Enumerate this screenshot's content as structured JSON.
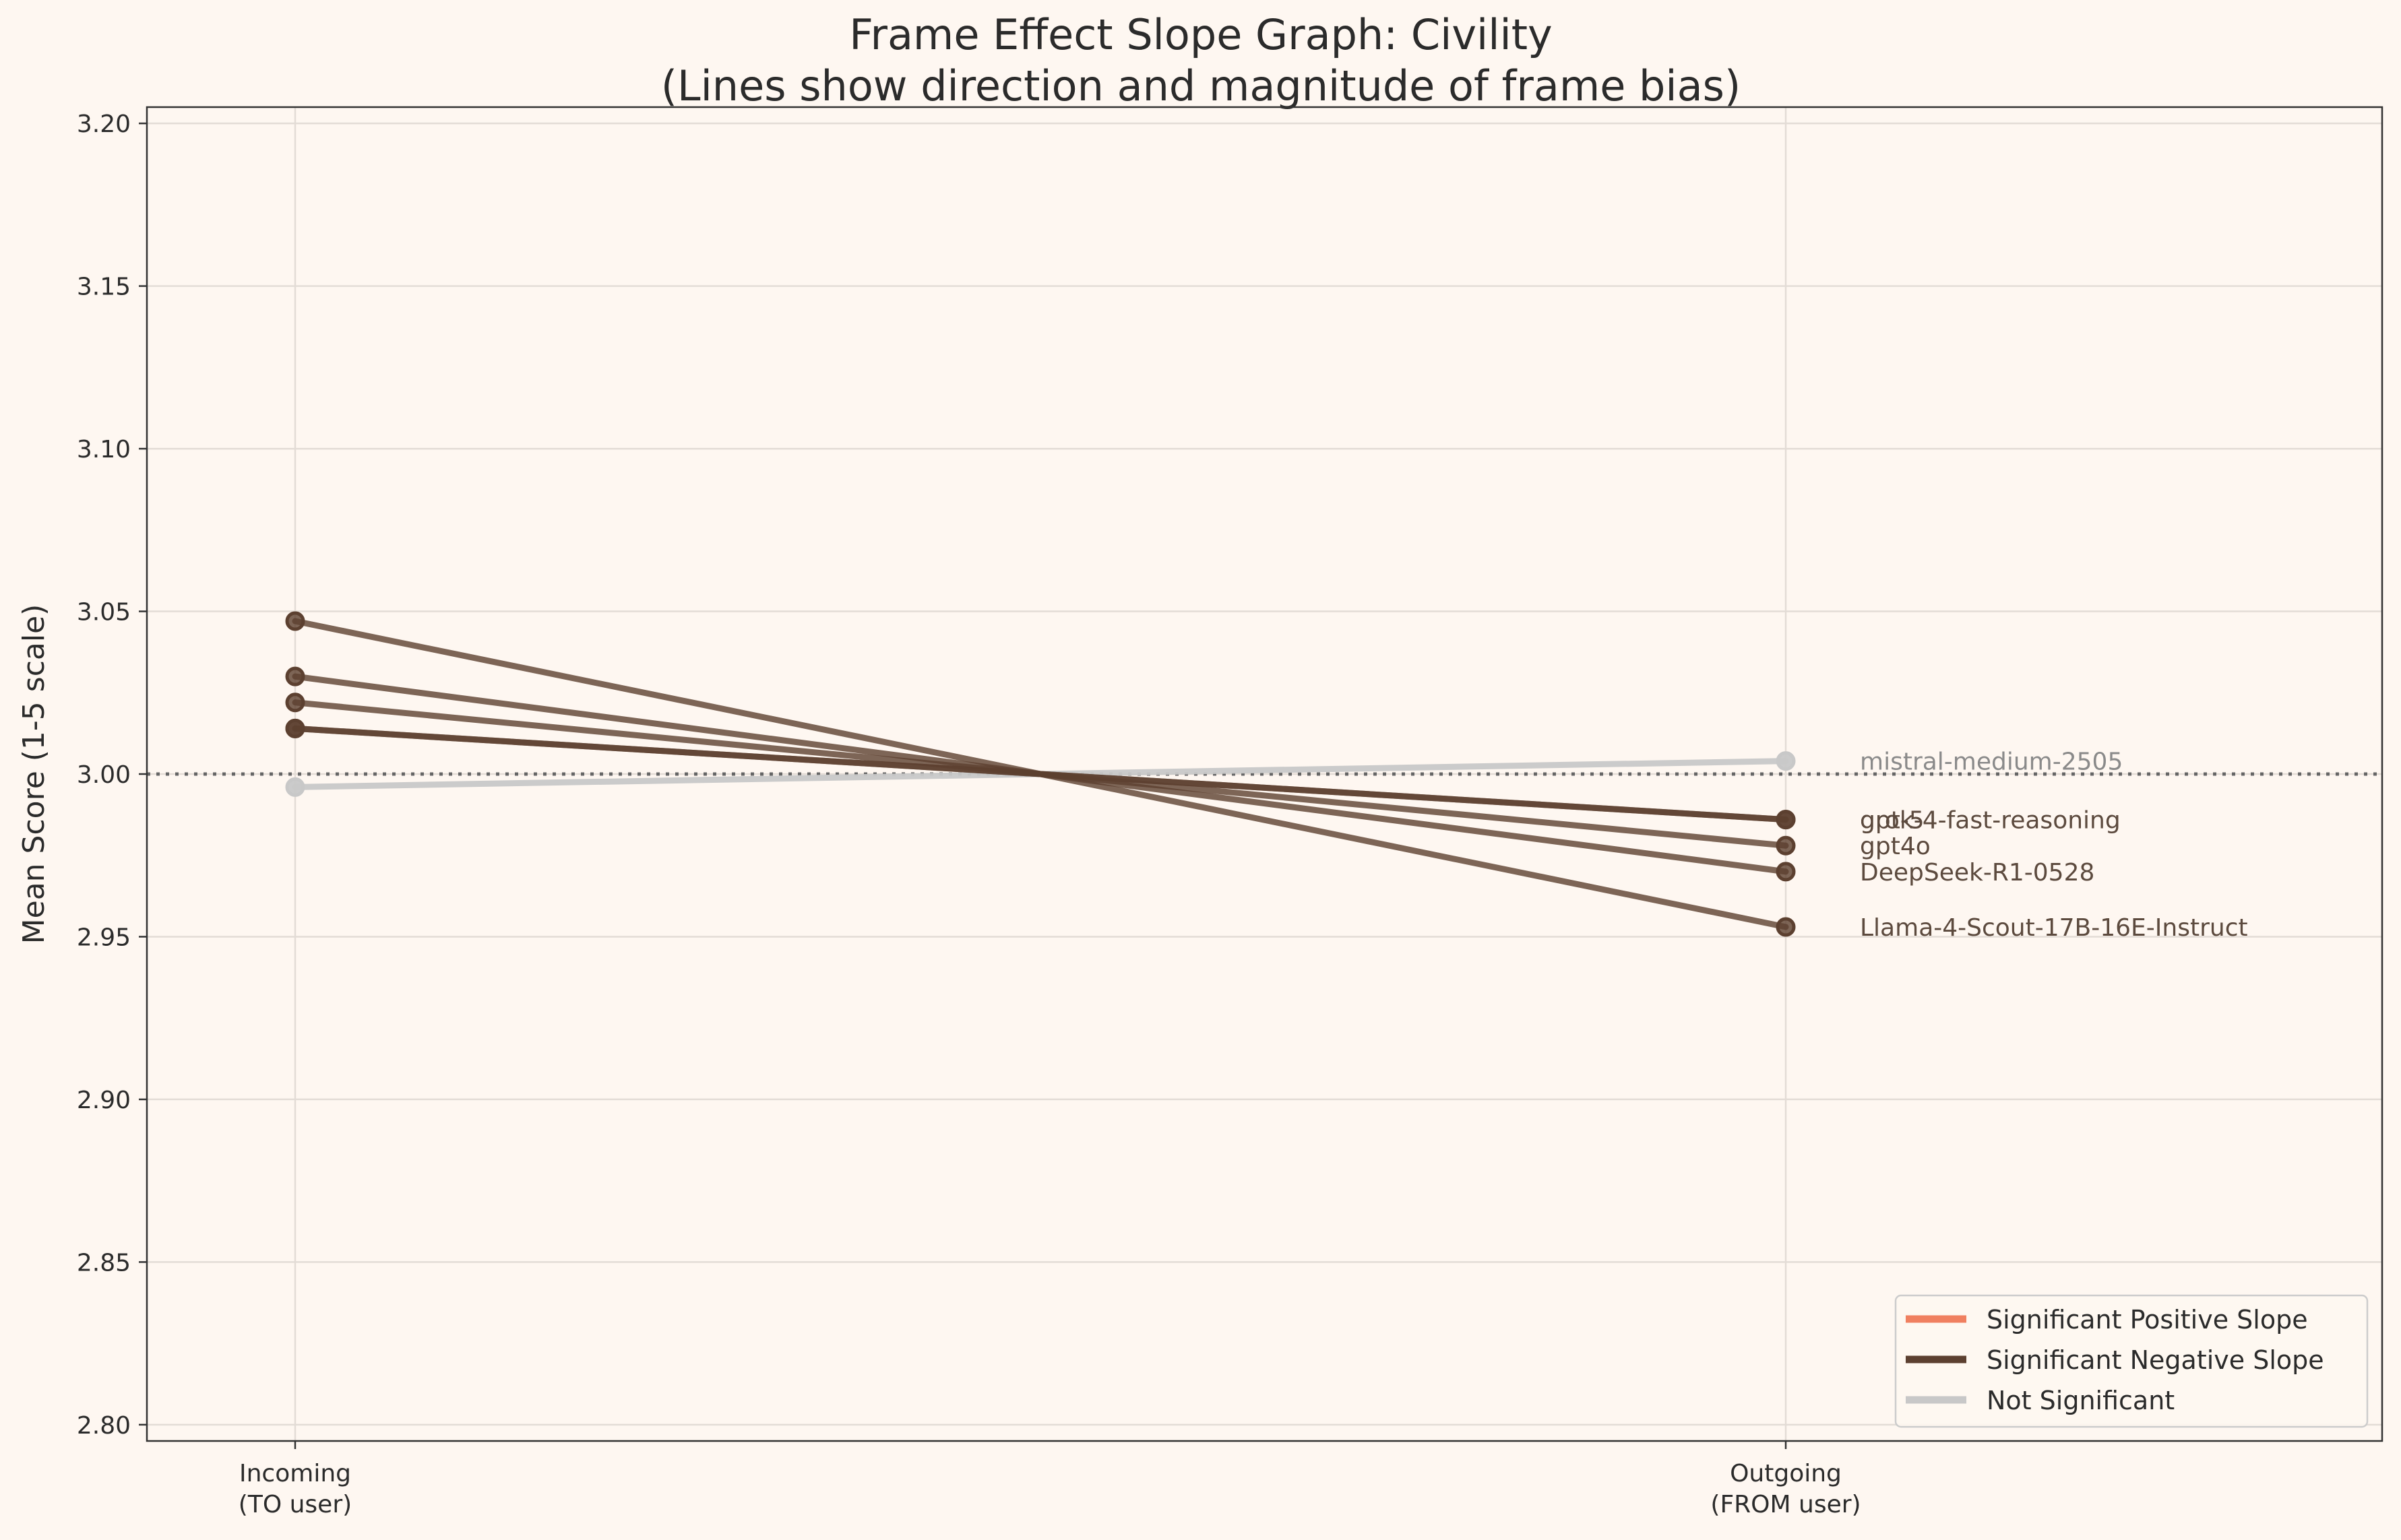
{
  "chart_data": {
    "type": "line",
    "title_line1": "Frame Effect Slope Graph: Civility",
    "title_line2": "(Lines show direction and magnitude of frame bias)",
    "xlabel": "",
    "ylabel": "Mean Score (1-5 scale)",
    "categories": [
      {
        "line1": "Incoming",
        "line2": "(TO user)"
      },
      {
        "line1": "Outgoing",
        "line2": "(FROM user)"
      }
    ],
    "ylim": [
      2.795,
      3.205
    ],
    "yticks": [
      "2.80",
      "2.85",
      "2.90",
      "2.95",
      "3.00",
      "3.05",
      "3.10",
      "3.15",
      "3.20"
    ],
    "reference_line": 3.0,
    "grid": true,
    "series": [
      {
        "name": "mistral-medium-2505",
        "values": [
          2.996,
          3.004
        ],
        "status": "Not Significant"
      },
      {
        "name": "grok-4-fast-reasoning",
        "values": [
          3.014,
          2.986
        ],
        "status": "Significant Negative Slope"
      },
      {
        "name": "gpt-5",
        "values": [
          3.014,
          2.986
        ],
        "status": "Significant Negative Slope"
      },
      {
        "name": "gpt4o",
        "values": [
          3.022,
          2.978
        ],
        "status": "Significant Negative Slope"
      },
      {
        "name": "DeepSeek-R1-0528",
        "values": [
          3.03,
          2.97
        ],
        "status": "Significant Negative Slope"
      },
      {
        "name": "Llama-4-Scout-17B-16E-Instruct",
        "values": [
          3.047,
          2.953
        ],
        "status": "Significant Negative Slope"
      }
    ],
    "legend": {
      "position": "bottom-right",
      "items": [
        {
          "label": "Significant Positive Slope",
          "color": "#f08060"
        },
        {
          "label": "Significant Negative Slope",
          "color": "#5c4030"
        },
        {
          "label": "Not Significant",
          "color": "#c8c8c8"
        }
      ]
    },
    "colors": {
      "background": "#fef7f1",
      "positive": "#f08060",
      "negative": "#5c4030",
      "not_significant": "#c8c8c8",
      "negative_label": "#5c4a3e",
      "ns_label": "#8a8a8a"
    }
  }
}
